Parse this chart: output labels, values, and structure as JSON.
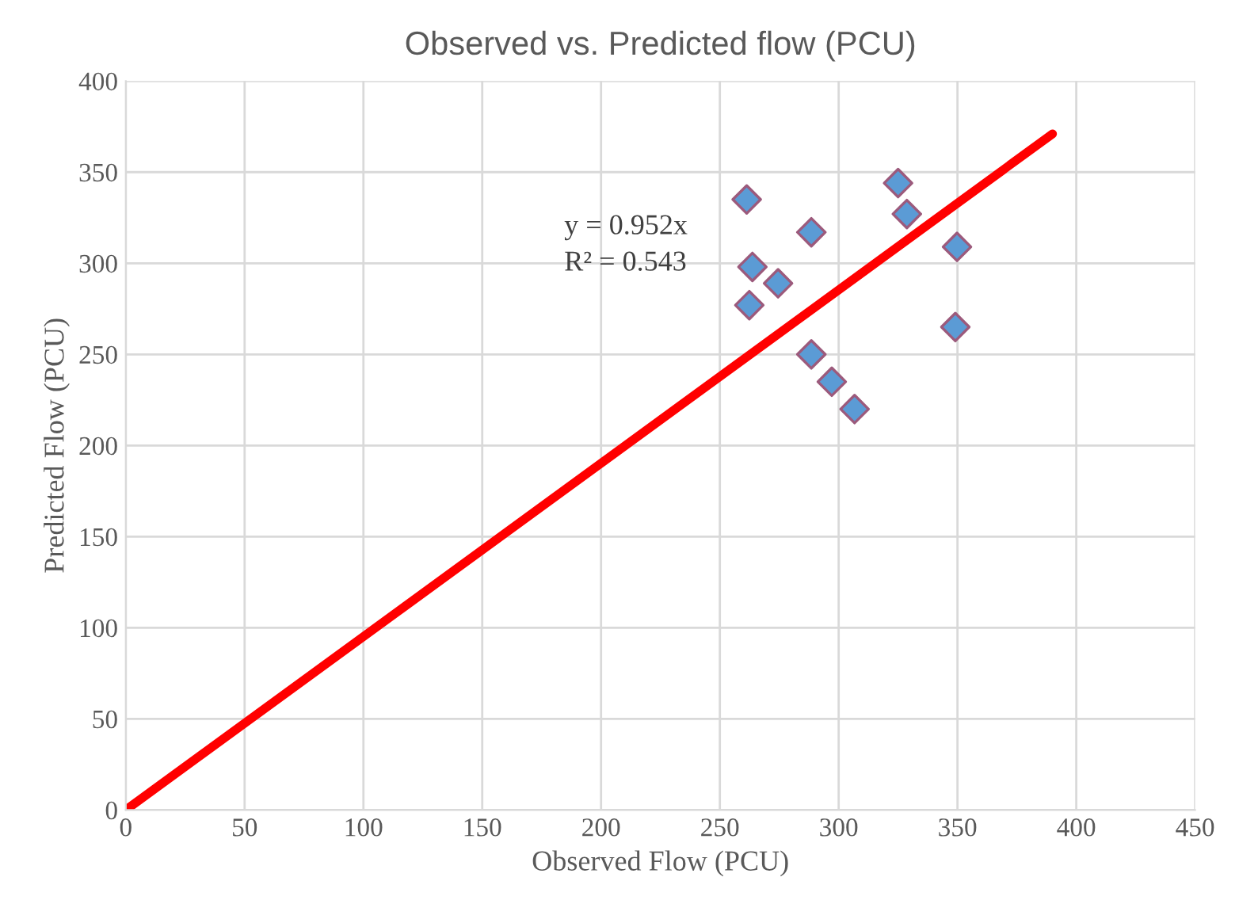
{
  "chart_data": {
    "type": "scatter",
    "title": "Observed vs. Predicted flow (PCU)",
    "xlabel": "Observed Flow (PCU)",
    "ylabel": "Predicted Flow (PCU)",
    "xlim": [
      0,
      450
    ],
    "xticks": [
      0,
      50,
      100,
      150,
      200,
      250,
      300,
      350,
      400,
      450
    ],
    "ylim": [
      0,
      400
    ],
    "yticks": [
      0,
      50,
      100,
      150,
      200,
      250,
      300,
      350,
      400
    ],
    "grid": true,
    "legend": false,
    "series": [
      {
        "color": "#5b9bd5",
        "marker": "diamond",
        "x": [
          261.3,
          325,
          328.7,
          288.5,
          349.8,
          263.7,
          274.5,
          262.4,
          349.1,
          288.5,
          297.1,
          306.7
        ],
        "values": [
          335,
          344,
          327,
          317,
          309,
          298,
          289,
          277,
          265,
          250,
          235,
          220
        ]
      },
      {
        "type": "line",
        "color": "#ff0000",
        "marker": "none",
        "line_style": "solid",
        "x": [
          0,
          390
        ],
        "values": [
          0,
          371
        ]
      }
    ],
    "annotations": [
      {
        "text": "y = 0.952x"
      },
      {
        "text": "R² = 0.543"
      }
    ]
  }
}
